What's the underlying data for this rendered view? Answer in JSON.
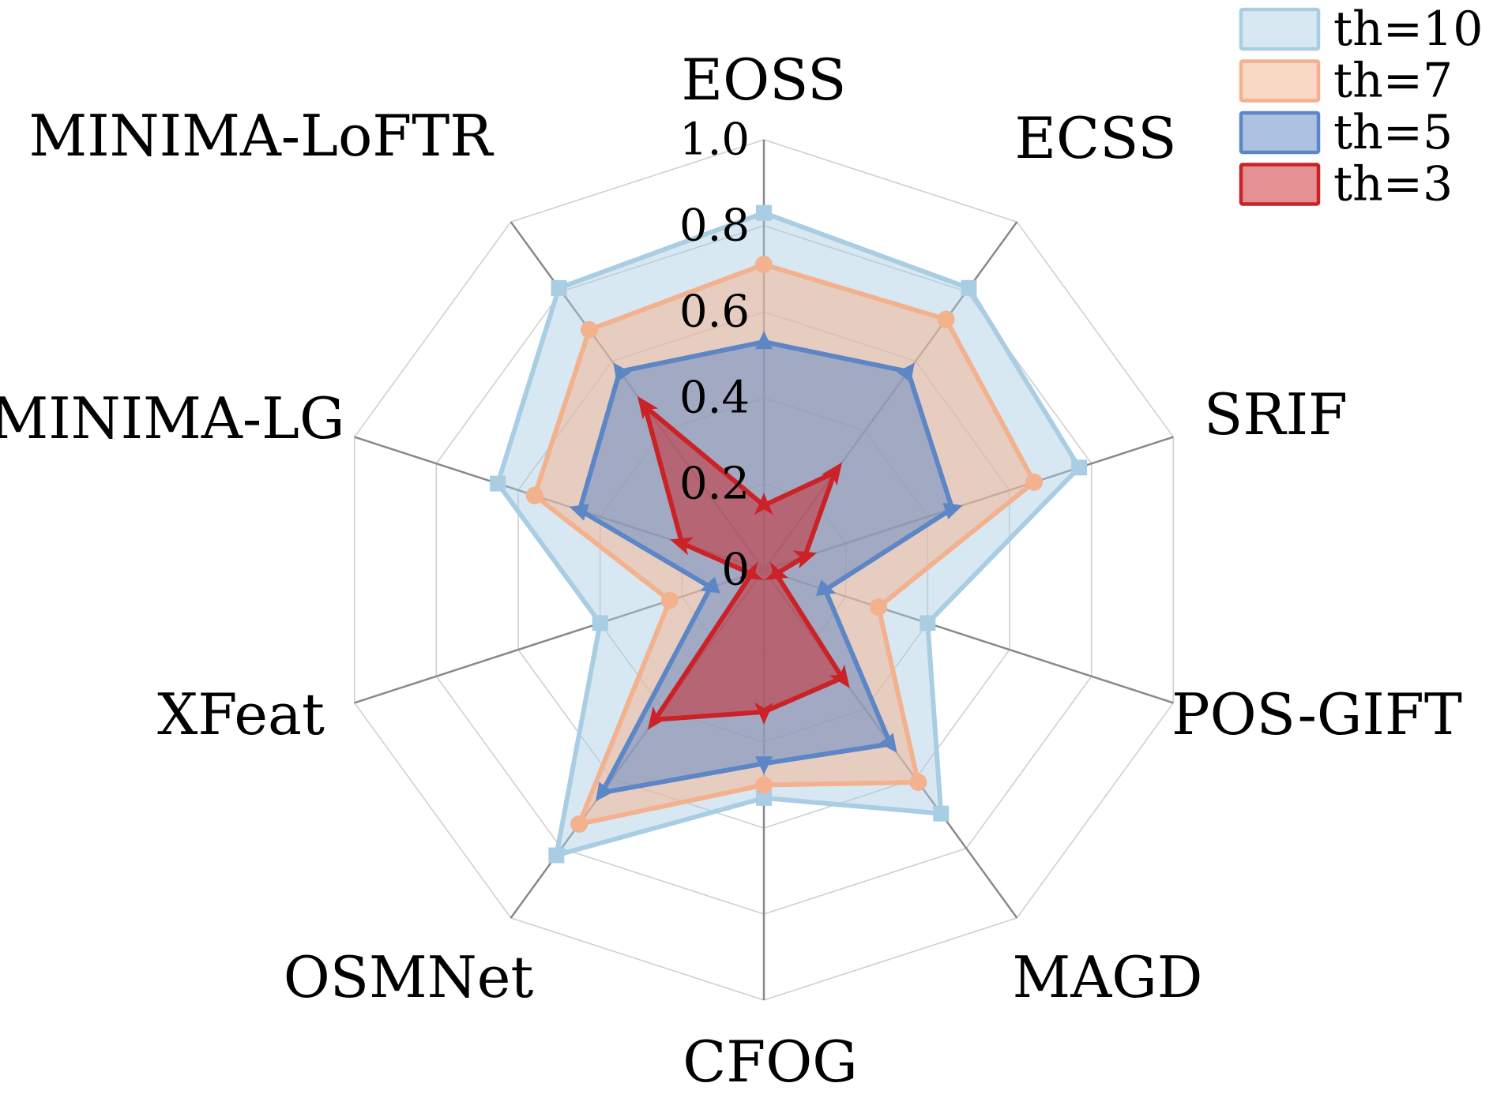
{
  "chart_data": {
    "type": "radar",
    "title": "",
    "categories": [
      "EOSS",
      "ECSS",
      "SRIF",
      "POS-GIFT",
      "MAGD",
      "CFOG",
      "OSMNet",
      "XFeat",
      "MINIMA-LG",
      "MINIMA-LoFTR"
    ],
    "r_axis": {
      "min": 0,
      "max": 1.0,
      "ticks": [
        0,
        0.2,
        0.4,
        0.6,
        0.8,
        1.0
      ],
      "tick_labels": [
        "0",
        "0.2",
        "0.4",
        "0.6",
        "0.8",
        "1.0"
      ]
    },
    "grid": {
      "rings": [
        0.2,
        0.4,
        0.6,
        0.8,
        1.0
      ],
      "ring_color": "#cdcdcd",
      "spoke_color": "#898989",
      "grid_on": true
    },
    "legend_position": "upper right",
    "series": [
      {
        "name": "th=10",
        "color": "#a9cde3",
        "fill_opacity": 0.45,
        "marker": "square",
        "values": [
          0.83,
          0.81,
          0.77,
          0.4,
          0.7,
          0.53,
          0.82,
          0.4,
          0.65,
          0.81
        ]
      },
      {
        "name": "th=7",
        "color": "#f3b18e",
        "fill_opacity": 0.5,
        "marker": "circle",
        "values": [
          0.71,
          0.72,
          0.66,
          0.28,
          0.61,
          0.5,
          0.73,
          0.23,
          0.56,
          0.69
        ]
      },
      {
        "name": "th=5",
        "color": "#5c86c6",
        "fill_opacity": 0.5,
        "marker": "triangle",
        "values": [
          0.53,
          0.57,
          0.46,
          0.15,
          0.5,
          0.45,
          0.64,
          0.13,
          0.45,
          0.57
        ]
      },
      {
        "name": "th=3",
        "color": "#cb2227",
        "fill_opacity": 0.5,
        "marker": "arrow",
        "values": [
          0.15,
          0.28,
          0.1,
          0.03,
          0.31,
          0.33,
          0.43,
          0.03,
          0.2,
          0.47
        ]
      }
    ]
  },
  "legend": {
    "items": [
      {
        "label": "th=10"
      },
      {
        "label": "th=7"
      },
      {
        "label": "th=5"
      },
      {
        "label": "th=3"
      }
    ]
  }
}
